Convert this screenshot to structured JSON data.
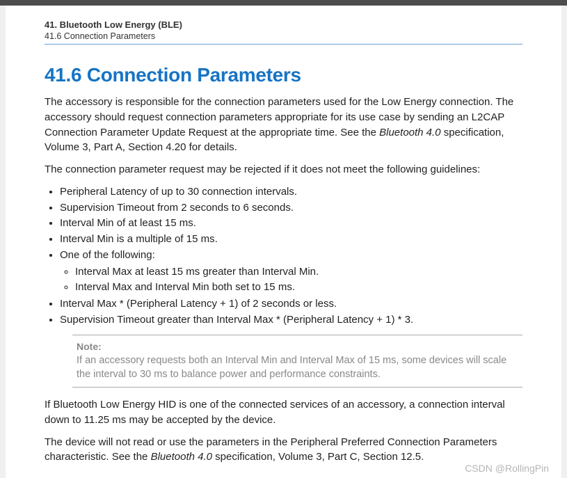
{
  "header": {
    "chapter": "41. Bluetooth Low Energy (BLE)",
    "section": "41.6 Connection Parameters"
  },
  "title": "41.6 Connection Parameters",
  "para1_a": "The accessory is responsible for the connection parameters used for the Low Energy connection. The accessory should request connection parameters appropriate for its use case by sending an L2CAP Connection Parameter Update Request at the appropriate time. See the ",
  "para1_spec": "Bluetooth 4.0",
  "para1_b": " specification, Volume 3, Part A, Section 4.20 for details.",
  "para2": "The connection parameter request may be rejected if it does not meet the following guidelines:",
  "bullets": [
    "Peripheral Latency of up to 30 connection intervals.",
    "Supervision Timeout from 2 seconds to 6 seconds.",
    "Interval Min of at least 15 ms.",
    "Interval Min is a multiple of 15 ms.",
    "One of the following:"
  ],
  "sub_bullets": [
    "Interval Max at least 15 ms greater than Interval Min.",
    "Interval Max and Interval Min both set to 15 ms."
  ],
  "bullets_after": [
    "Interval Max * (Peripheral Latency + 1) of 2 seconds or less.",
    "Supervision Timeout greater than Interval Max * (Peripheral Latency + 1) * 3."
  ],
  "note": {
    "label": "Note:",
    "text": "If an accessory requests both an Interval Min and Interval Max of 15 ms, some devices will scale the interval to 30 ms to balance power and performance constraints."
  },
  "para3": "If Bluetooth Low Energy HID is one of the connected services of an accessory, a connection interval down to 11.25 ms may be accepted by the device.",
  "para4_a": "The device will not read or use the parameters in the Peripheral Preferred Connection Parameters characteristic. See the ",
  "para4_spec": "Bluetooth 4.0",
  "para4_b": " specification, Volume 3, Part C, Section 12.5.",
  "watermark": "CSDN @RollingPin"
}
